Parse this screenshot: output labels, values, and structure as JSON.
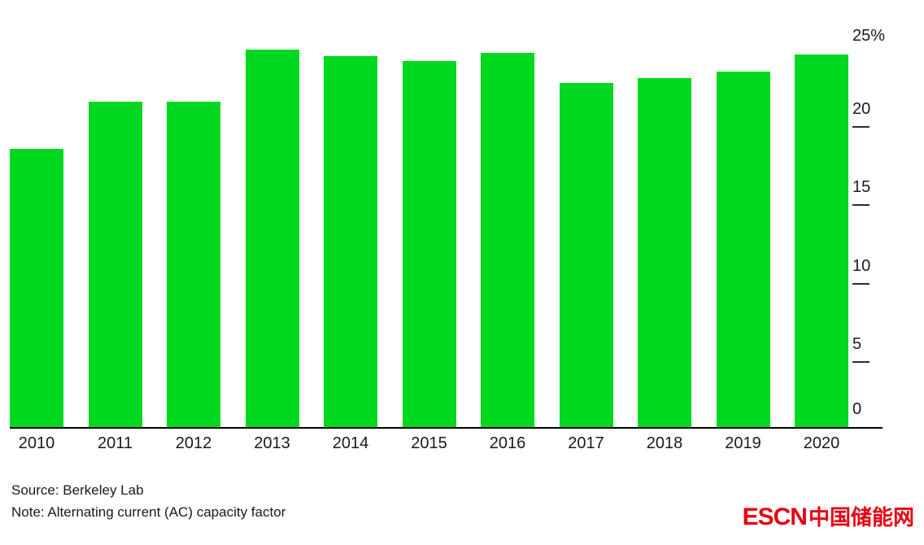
{
  "chart_data": {
    "type": "bar",
    "title": "",
    "xlabel": "",
    "ylabel": "",
    "unit": "%",
    "bar_color": "#00d91f",
    "axis_side": "right",
    "grid": false,
    "legend": "none",
    "ylim": [
      0,
      25
    ],
    "categories": [
      "2010",
      "2011",
      "2012",
      "2013",
      "2014",
      "2015",
      "2016",
      "2017",
      "2018",
      "2019",
      "2020"
    ],
    "values": [
      17.7,
      20.7,
      20.7,
      24.0,
      23.6,
      23.3,
      23.8,
      21.9,
      22.2,
      22.6,
      23.7
    ],
    "yticks": [
      {
        "value": 0,
        "label": "0"
      },
      {
        "value": 5,
        "label": "5"
      },
      {
        "value": 10,
        "label": "10"
      },
      {
        "value": 15,
        "label": "15"
      },
      {
        "value": 20,
        "label": "20"
      },
      {
        "value": 25,
        "label": "25%"
      }
    ]
  },
  "footer": {
    "source": "Source: Berkeley Lab",
    "note": "Note: Alternating current (AC) capacity factor"
  },
  "logo": {
    "latin": "ESCN",
    "chinese": "中国储能网",
    "color": "#e60012"
  }
}
